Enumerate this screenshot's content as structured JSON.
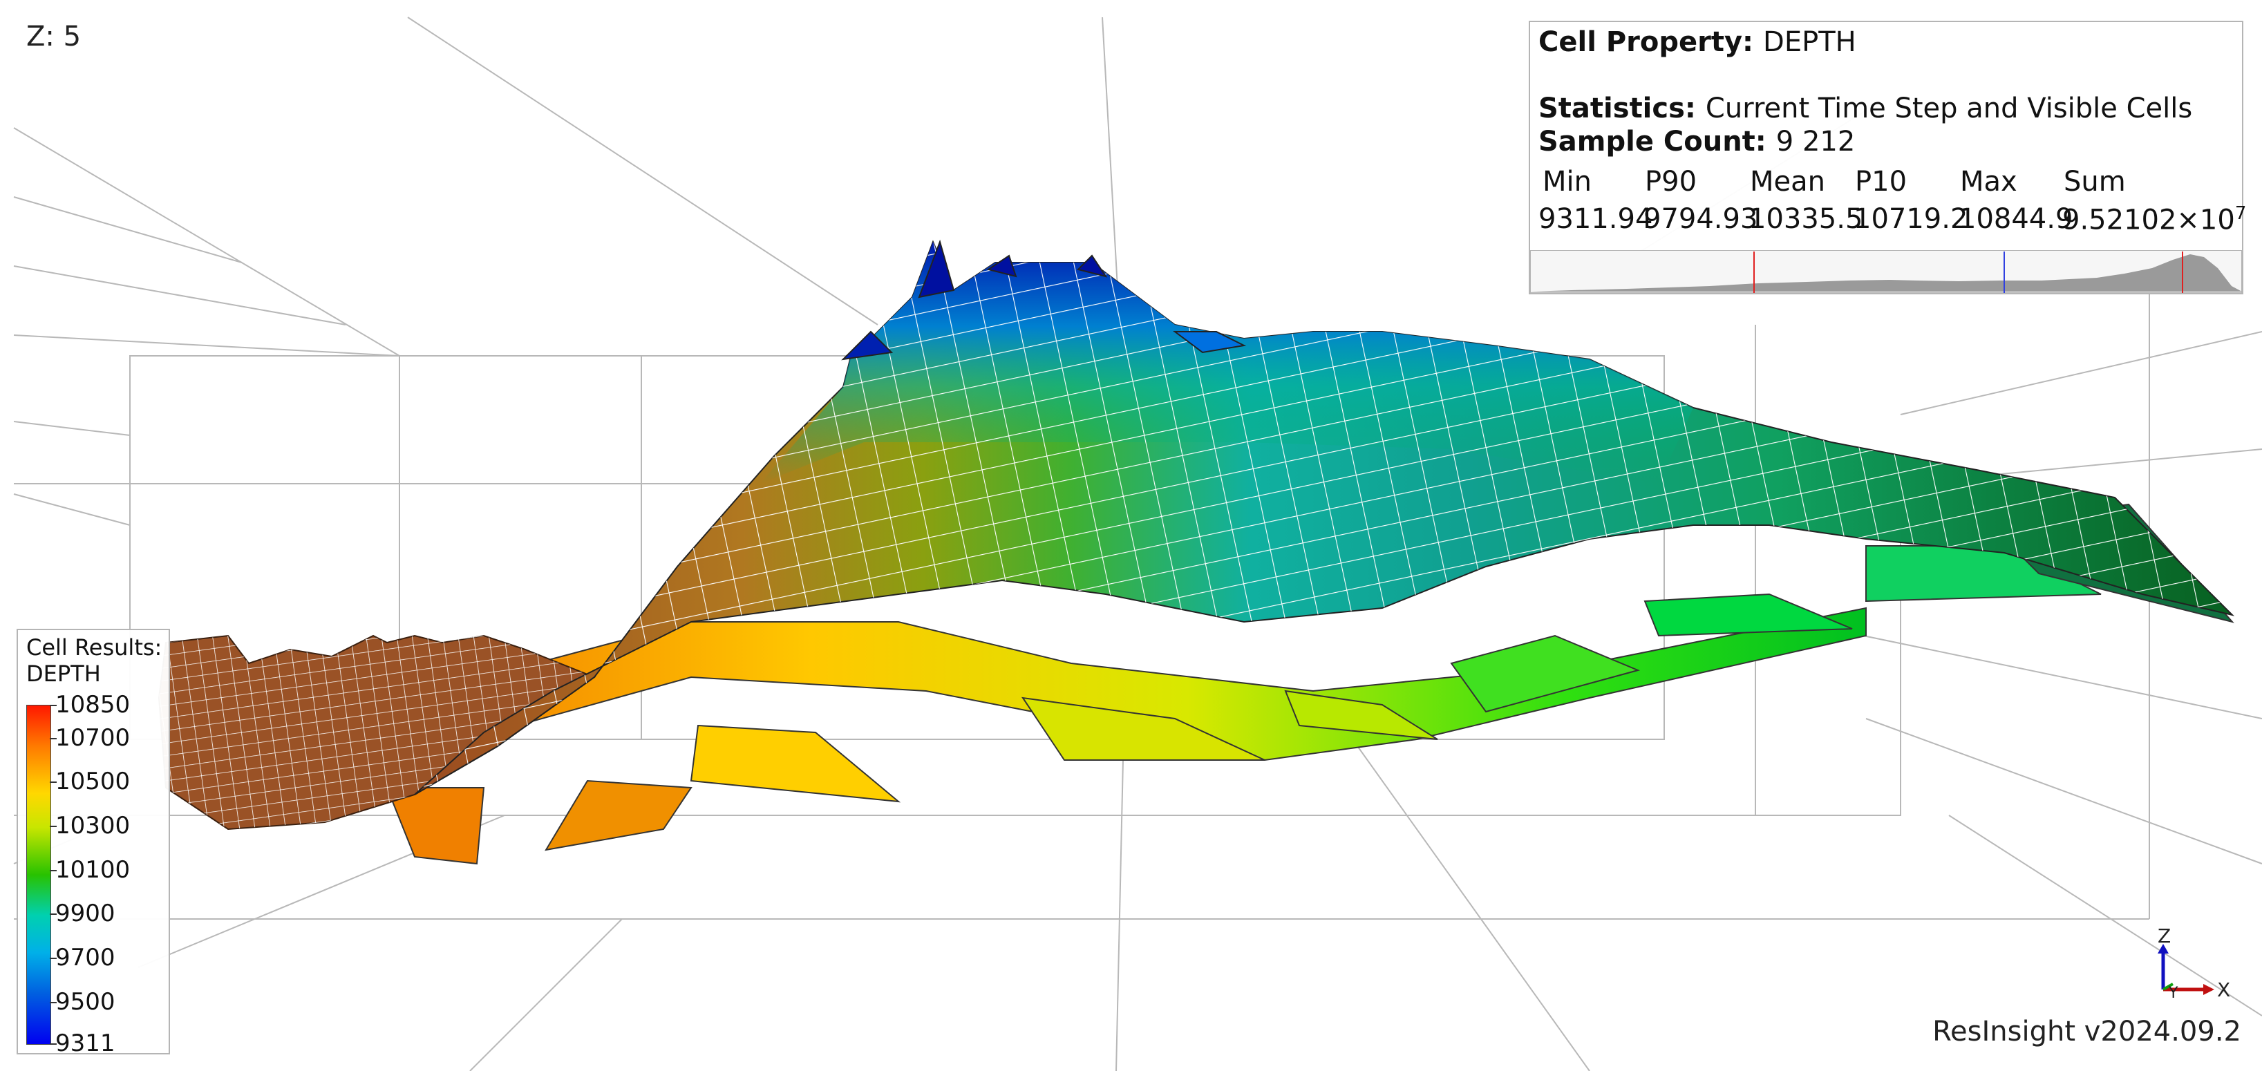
{
  "viewer": {
    "z_scale": "Z: 5",
    "version": "ResInsight v2024.09.2"
  },
  "statistics": {
    "cell_property_label": "Cell Property:",
    "cell_property": "DEPTH",
    "statistics_label": "Statistics:",
    "statistics_value": "Current Time Step and Visible Cells",
    "sample_count_label": "Sample Count:",
    "sample_count": "9 212",
    "columns": [
      "Min",
      "P90",
      "Mean",
      "P10",
      "Max",
      "Sum"
    ],
    "values": [
      "9311.94",
      "9794.93",
      "10335.5",
      "10719.2",
      "10844.9",
      "9.52102×10"
    ],
    "sum_exponent": "7"
  },
  "legend": {
    "title_line1": "Cell Results:",
    "title_line2": "DEPTH",
    "ticks": [
      "10850",
      "10700",
      "10500",
      "10300",
      "10100",
      "9900",
      "9700",
      "9500",
      "9311"
    ],
    "range": [
      9311,
      10850
    ]
  },
  "axis_triad": {
    "z": "Z",
    "x": "X",
    "y": "Y"
  },
  "colors": {
    "background": "#ffffff",
    "grid": "#b8b8b8",
    "histogram": "#9a9a9a",
    "p_marker": "#e02020",
    "mean_marker": "#3040e0"
  }
}
